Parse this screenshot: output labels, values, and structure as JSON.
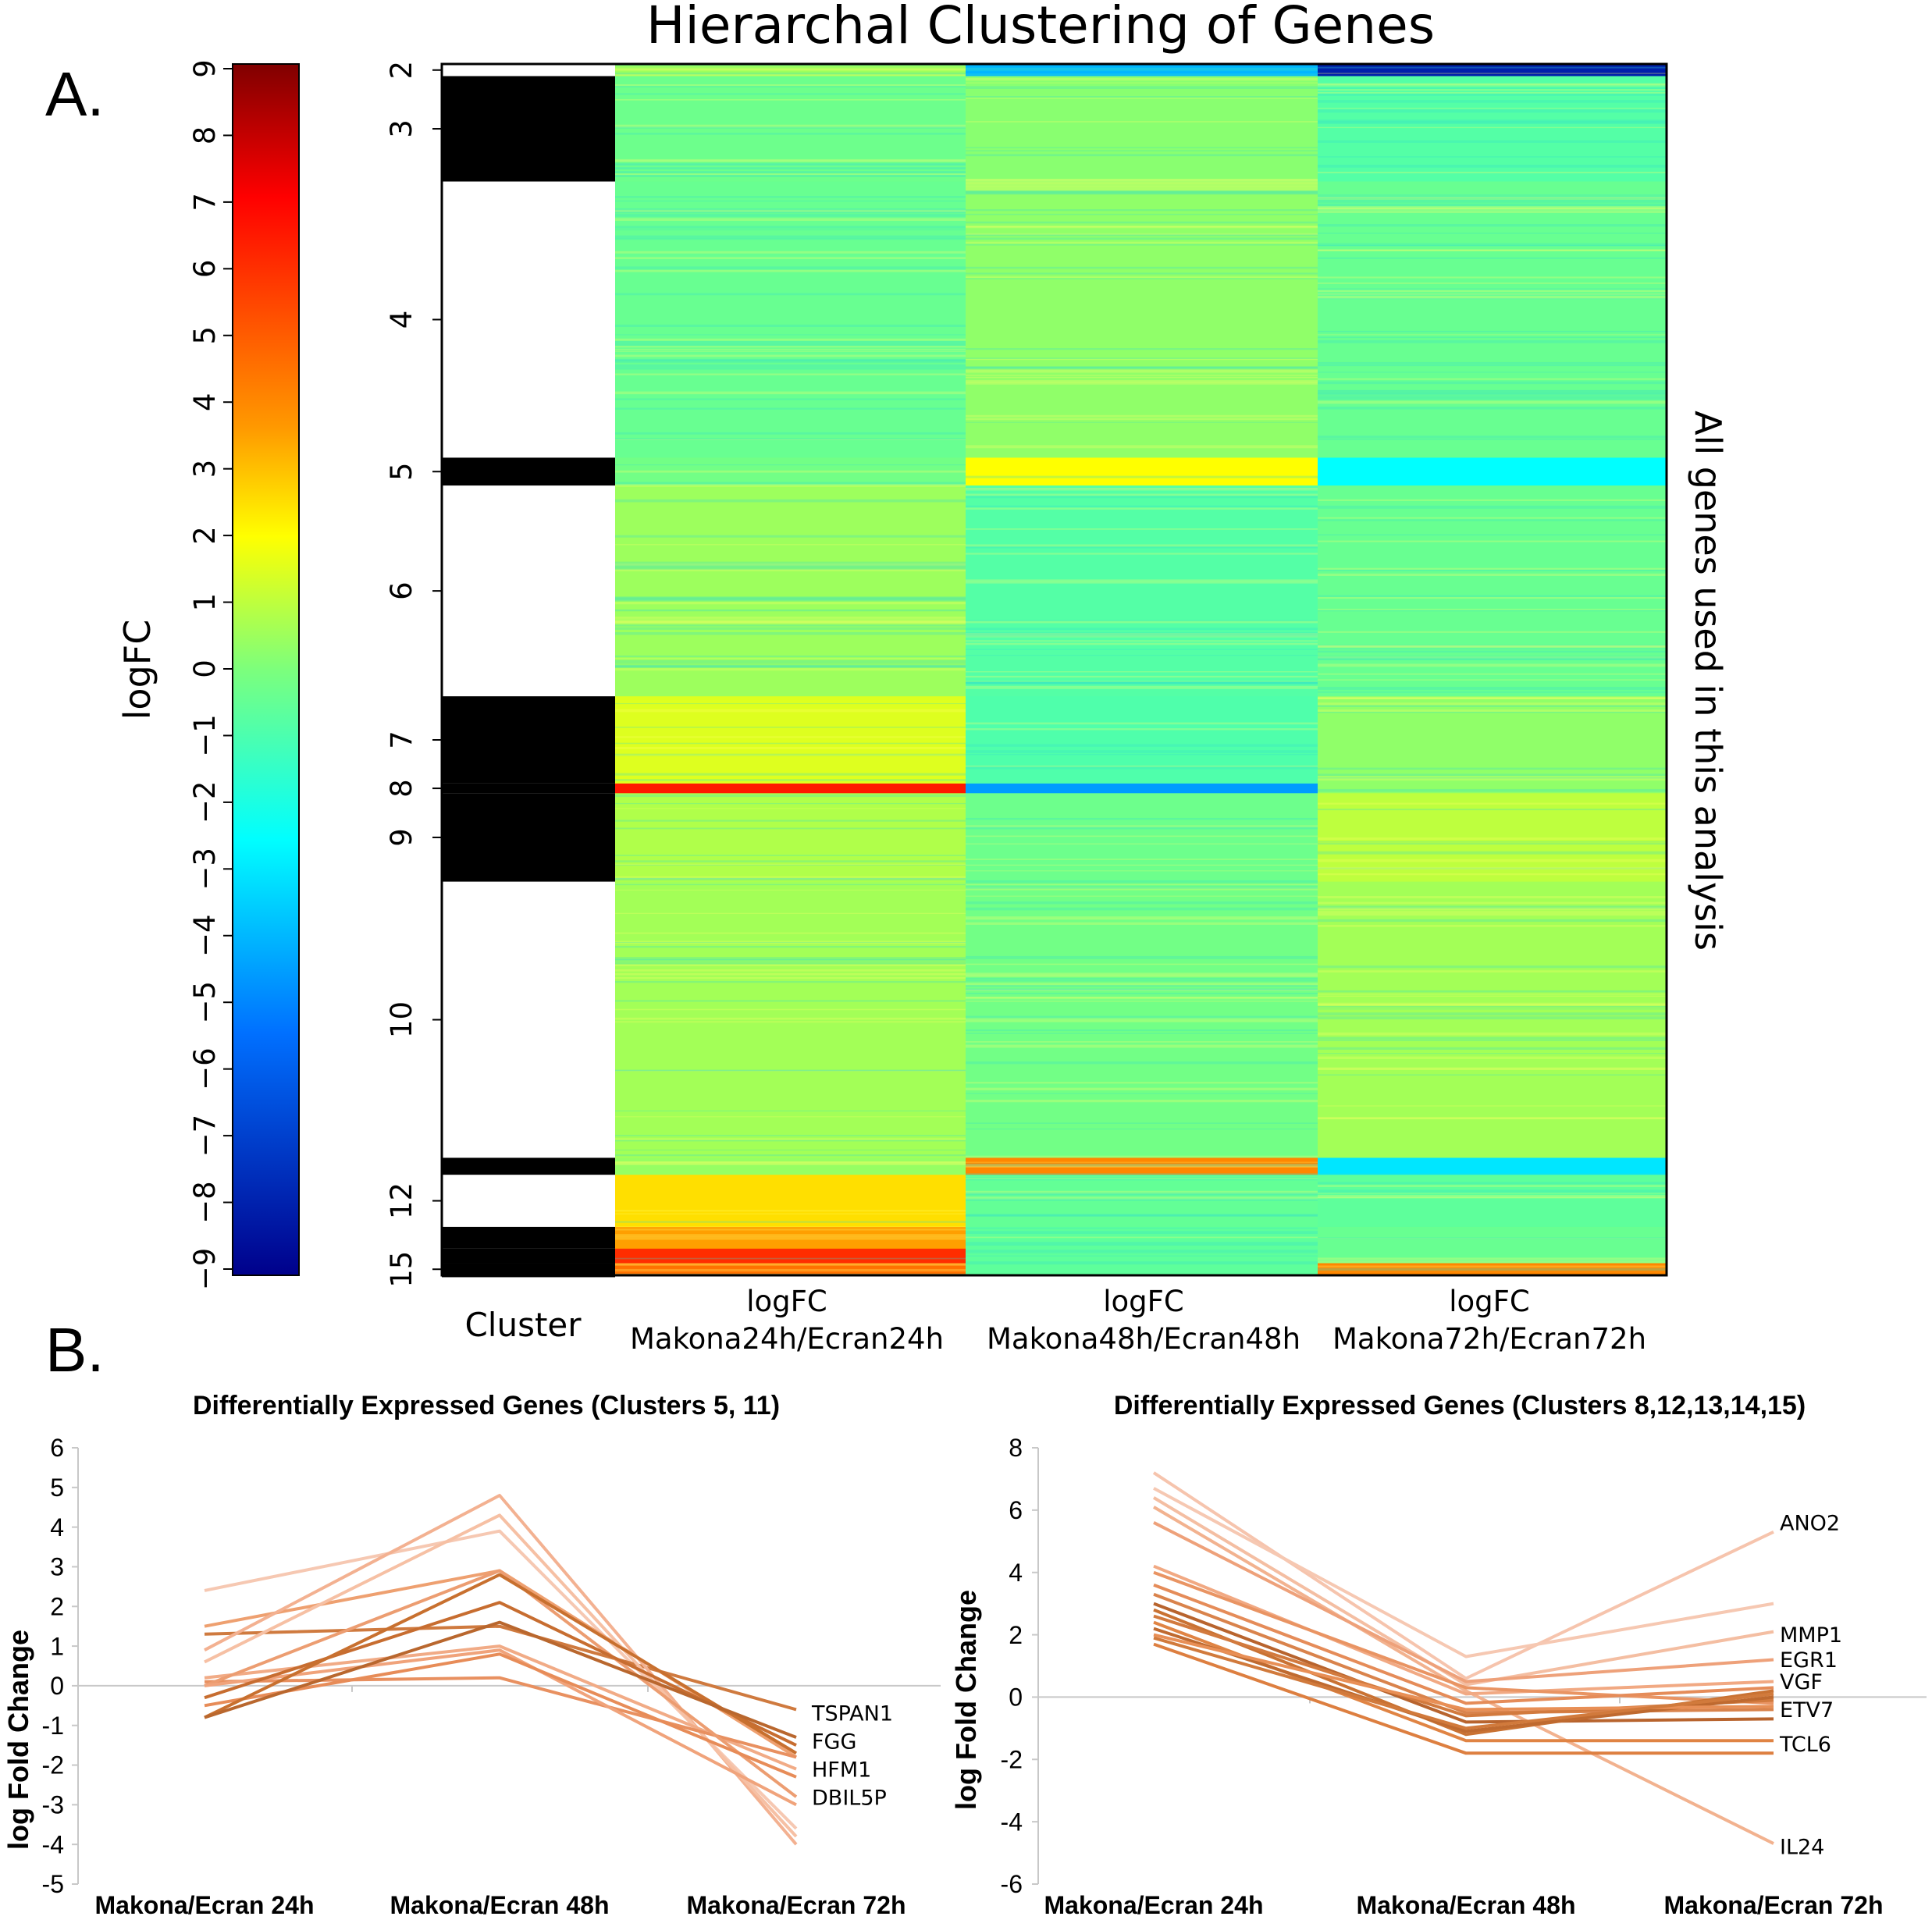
{
  "panel_labels": {
    "a": "A.",
    "b": "B."
  },
  "heatmap": {
    "title": "Hierarchal Clustering of Genes",
    "colorbar_label": "logFC",
    "colorbar_ticks": [
      "9",
      "8",
      "7",
      "6",
      "5",
      "4",
      "3",
      "2",
      "1",
      "0",
      "−1",
      "−2",
      "−3",
      "−4",
      "−5",
      "−6",
      "−7",
      "−8",
      "−9"
    ],
    "right_label": "All genes used in this analysis",
    "cluster_column_label": "Cluster",
    "columns": [
      {
        "line1": "logFC",
        "line2": "Makona24h/Ecran24h"
      },
      {
        "line1": "logFC",
        "line2": "Makona48h/Ecran48h"
      },
      {
        "line1": "logFC",
        "line2": "Makona72h/Ecran72h"
      }
    ],
    "cluster_ticks": [
      "2",
      "3",
      "4",
      "5",
      "6",
      "7",
      "8",
      "9",
      "10",
      "12",
      "15"
    ],
    "colors": {
      "low": "#00008b",
      "mid": "#00ffff",
      "center": "#7cff7c",
      "high_mid": "#ffff00",
      "high": "#ff0000",
      "top": "#800000"
    }
  },
  "line_charts": [
    {
      "title": "Differentially Expressed Genes (Clusters 5, 11)",
      "ylabel": "log Fold Change",
      "yticks": [
        "6",
        "5",
        "4",
        "3",
        "2",
        "1",
        "0",
        "-1",
        "-2",
        "-3",
        "-4",
        "-5"
      ],
      "categories": [
        "Makona/Ecran 24h",
        "Makona/Ecran 48h",
        "Makona/Ecran 72h"
      ],
      "gene_labels": [
        "TSPAN1",
        "FGG",
        "HFM1",
        "DBIL5P"
      ]
    },
    {
      "title": "Differentially Expressed Genes (Clusters 8,12,13,14,15)",
      "ylabel": "log Fold Change",
      "yticks": [
        "8",
        "6",
        "4",
        "2",
        "0",
        "-2",
        "-4",
        "-6"
      ],
      "categories": [
        "Makona/Ecran 24h",
        "Makona/Ecran 48h",
        "Makona/Ecran 72h"
      ],
      "gene_labels": [
        "ANO2",
        "MMP1",
        "EGR1",
        "VGF",
        "ETV7",
        "TCL6",
        "IL24"
      ]
    }
  ],
  "chart_data": [
    {
      "type": "heatmap",
      "title": "Hierarchal Clustering of Genes",
      "colorbar": {
        "label": "logFC",
        "range": [
          -9,
          9
        ]
      },
      "columns": [
        "Makona24h/Ecran24h",
        "Makona48h/Ecran48h",
        "Makona72h/Ecran72h"
      ],
      "clusters": [
        {
          "id": 2,
          "span": [
            0.0,
            0.01
          ],
          "logFC": [
            0.5,
            -4.0,
            -8.0
          ]
        },
        {
          "id": 3,
          "span": [
            0.01,
            0.097
          ],
          "logFC": [
            -0.3,
            0.2,
            -0.8
          ]
        },
        {
          "id": 4,
          "span": [
            0.097,
            0.325
          ],
          "logFC": [
            -0.4,
            0.3,
            -0.4
          ]
        },
        {
          "id": 5,
          "span": [
            0.325,
            0.348
          ],
          "logFC": [
            -0.2,
            2.0,
            -2.5
          ]
        },
        {
          "id": 6,
          "span": [
            0.348,
            0.522
          ],
          "logFC": [
            0.5,
            -0.8,
            -0.4
          ]
        },
        {
          "id": 7,
          "span": [
            0.522,
            0.594
          ],
          "logFC": [
            1.5,
            -0.9,
            0.3
          ]
        },
        {
          "id": 8,
          "span": [
            0.594,
            0.602
          ],
          "logFC": [
            6.5,
            -4.5,
            0.3
          ]
        },
        {
          "id": 9,
          "span": [
            0.602,
            0.675
          ],
          "logFC": [
            0.8,
            -0.3,
            1.0
          ]
        },
        {
          "id": 10,
          "span": [
            0.675,
            0.903
          ],
          "logFC": [
            0.6,
            -0.2,
            0.6
          ]
        },
        {
          "id": 11,
          "span": [
            0.903,
            0.917
          ],
          "logFC": [
            0.4,
            4.0,
            -3.0
          ]
        },
        {
          "id": 12,
          "span": [
            0.917,
            0.96
          ],
          "logFC": [
            2.5,
            -0.5,
            -0.6
          ]
        },
        {
          "id": 13,
          "span": [
            0.96,
            0.978
          ],
          "logFC": [
            3.5,
            -0.6,
            -0.4
          ]
        },
        {
          "id": 14,
          "span": [
            0.978,
            0.99
          ],
          "logFC": [
            6.0,
            -0.6,
            -0.4
          ]
        },
        {
          "id": 15,
          "span": [
            0.99,
            1.0
          ],
          "logFC": [
            4.5,
            -0.6,
            4.0
          ]
        }
      ]
    },
    {
      "type": "line",
      "title": "Differentially Expressed Genes (Clusters 5, 11)",
      "xlabel": "",
      "ylabel": "log Fold Change",
      "ylim": [
        -5,
        6
      ],
      "categories": [
        "Makona/Ecran 24h",
        "Makona/Ecran 48h",
        "Makona/Ecran 72h"
      ],
      "series": [
        {
          "values": [
            2.4,
            3.9,
            -3.6
          ],
          "color": "#f6c8b2"
        },
        {
          "values": [
            1.5,
            2.9,
            -1.8
          ],
          "color": "#eea070"
        },
        {
          "values": [
            1.3,
            1.5,
            -0.6
          ],
          "color": "#cf7a3f"
        },
        {
          "values": [
            0.9,
            4.8,
            -4.0
          ],
          "color": "#f3b191"
        },
        {
          "values": [
            0.6,
            4.3,
            -3.8
          ],
          "color": "#f6c0a4"
        },
        {
          "values": [
            0.2,
            1.0,
            -2.1
          ],
          "color": "#f1ab86"
        },
        {
          "values": [
            0.1,
            0.2,
            -1.8
          ],
          "color": "#e89060"
        },
        {
          "values": [
            0.0,
            2.9,
            -2.8
          ],
          "color": "#ec9d71"
        },
        {
          "values": [
            0.0,
            0.9,
            -3.0
          ],
          "color": "#f0a37b"
        },
        {
          "values": [
            -0.3,
            2.1,
            -1.5
          ],
          "color": "#c76d30"
        },
        {
          "values": [
            -0.5,
            0.8,
            -2.3
          ],
          "color": "#e78c58"
        },
        {
          "values": [
            -0.8,
            2.8,
            -1.7
          ],
          "color": "#c8702f"
        },
        {
          "values": [
            -0.8,
            1.6,
            -1.3
          ],
          "color": "#b9672e"
        }
      ],
      "labels": [
        {
          "gene": "TSPAN1",
          "value": -0.6
        },
        {
          "gene": "FGG",
          "value": -1.3
        },
        {
          "gene": "HFM1",
          "value": -2.0
        },
        {
          "gene": "DBIL5P",
          "value": -2.6
        }
      ]
    },
    {
      "type": "line",
      "title": "Differentially Expressed Genes (Clusters 8,12,13,14,15)",
      "xlabel": "",
      "ylabel": "log Fold Change",
      "ylim": [
        -6,
        8
      ],
      "categories": [
        "Makona/Ecran 24h",
        "Makona/Ecran 48h",
        "Makona/Ecran 72h"
      ],
      "series": [
        {
          "values": [
            7.2,
            0.6,
            5.3
          ],
          "color": "#f6c4ad"
        },
        {
          "values": [
            6.7,
            1.3,
            3.0
          ],
          "color": "#f6c8b2"
        },
        {
          "values": [
            6.4,
            0.4,
            2.1
          ],
          "color": "#f4bea2"
        },
        {
          "values": [
            6.1,
            0.2,
            -4.7
          ],
          "color": "#f2b28f"
        },
        {
          "values": [
            5.6,
            0.5,
            1.2
          ],
          "color": "#eea17a"
        },
        {
          "values": [
            4.2,
            0.1,
            0.5
          ],
          "color": "#f1a983"
        },
        {
          "values": [
            4.0,
            0.3,
            -0.2
          ],
          "color": "#e99463"
        },
        {
          "values": [
            3.6,
            -0.2,
            0.3
          ],
          "color": "#e58c59"
        },
        {
          "values": [
            3.3,
            -0.5,
            -0.4
          ],
          "color": "#d9834c"
        },
        {
          "values": [
            3.0,
            -0.8,
            -0.7
          ],
          "color": "#b8642e"
        },
        {
          "values": [
            2.8,
            -1.2,
            0.2
          ],
          "color": "#c97233"
        },
        {
          "values": [
            2.6,
            -0.6,
            -0.1
          ],
          "color": "#d27a3e"
        },
        {
          "values": [
            2.4,
            -1.4,
            -1.4
          ],
          "color": "#e08444"
        },
        {
          "values": [
            2.2,
            -1.1,
            0.0
          ],
          "color": "#bf6a30"
        },
        {
          "values": [
            2.0,
            -0.4,
            -0.3
          ],
          "color": "#e88f56"
        },
        {
          "values": [
            1.9,
            -1.0,
            0.1
          ],
          "color": "#d17a3c"
        },
        {
          "values": [
            1.7,
            -1.8,
            -1.8
          ],
          "color": "#dd7f40"
        }
      ],
      "labels": [
        {
          "gene": "ANO2",
          "value": 5.6
        },
        {
          "gene": "MMP1",
          "value": 2.0
        },
        {
          "gene": "EGR1",
          "value": 1.2
        },
        {
          "gene": "VGF",
          "value": 0.5
        },
        {
          "gene": "ETV7",
          "value": -0.4
        },
        {
          "gene": "TCL6",
          "value": -1.5
        },
        {
          "gene": "IL24",
          "value": -4.8
        }
      ]
    }
  ]
}
